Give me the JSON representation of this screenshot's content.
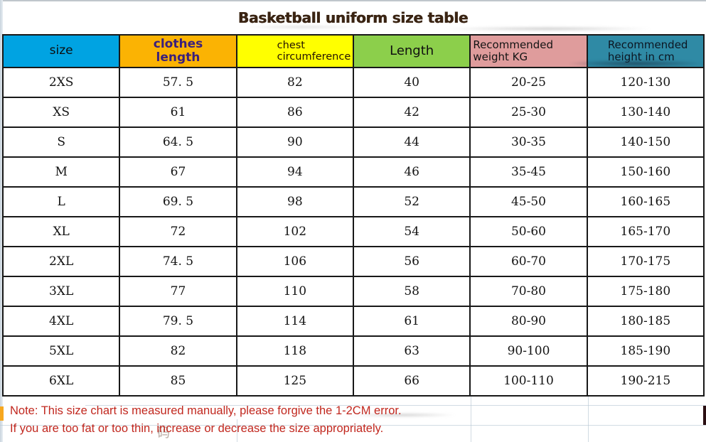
{
  "title": "Basketball uniform size table",
  "table": {
    "headers": [
      {
        "label": "size",
        "bg": "#00a3e2"
      },
      {
        "label": "clothes length",
        "bg": "#fbb303",
        "text_color": "#3a1f7d"
      },
      {
        "label": "chest circumference",
        "bg": "#ffff00"
      },
      {
        "label": "Length",
        "bg": "#8ccf4b"
      },
      {
        "label": "Recommended weight KG",
        "bg": "#df9c9c"
      },
      {
        "label": "Recommended height in cm",
        "bg": "#2f8aa5"
      }
    ],
    "rows": [
      [
        "2XS",
        "57. 5",
        "82",
        "40",
        "20-25",
        "120-130"
      ],
      [
        "XS",
        "61",
        "86",
        "42",
        "25-30",
        "130-140"
      ],
      [
        "S",
        "64. 5",
        "90",
        "44",
        "30-35",
        "140-150"
      ],
      [
        "M",
        "67",
        "94",
        "46",
        "35-45",
        "150-160"
      ],
      [
        "L",
        "69. 5",
        "98",
        "52",
        "45-50",
        "160-165"
      ],
      [
        "XL",
        "72",
        "102",
        "54",
        "50-60",
        "165-170"
      ],
      [
        "2XL",
        "74. 5",
        "106",
        "56",
        "60-70",
        "170-175"
      ],
      [
        "3XL",
        "77",
        "110",
        "58",
        "70-80",
        "175-180"
      ],
      [
        "4XL",
        "79. 5",
        "114",
        "61",
        "80-90",
        "180-185"
      ],
      [
        "5XL",
        "82",
        "118",
        "63",
        "90-100",
        "185-190"
      ],
      [
        "6XL",
        "85",
        "125",
        "66",
        "100-110",
        "190-215"
      ]
    ]
  },
  "notes": {
    "line1": "Note: This size chart is measured manually, please forgive the 1-2CM error.",
    "line2": "If you are too fat or too thin, increase or decrease the size appropriately.",
    "color": "#c1271e"
  },
  "watermark": "码"
}
